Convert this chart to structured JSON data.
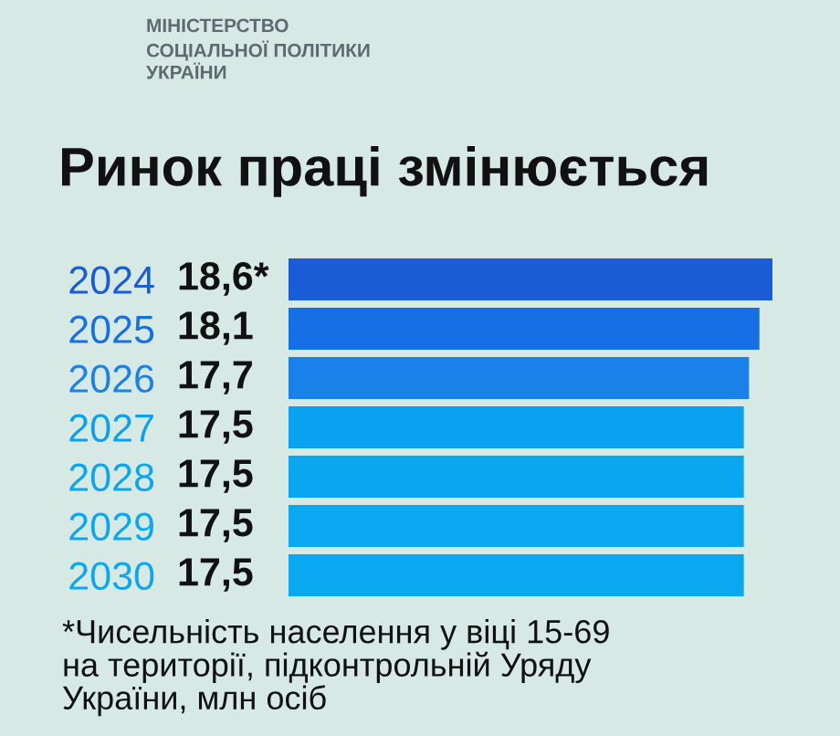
{
  "chart_data": {
    "type": "bar",
    "orientation": "horizontal",
    "title": "Ринок праці змінюється",
    "annotations": [
      "МІНІСТЕРСТВО\nСОЦІАЛЬНОЇ ПОЛІТИКИ\nУКРАЇНИ",
      "*Чисельність населення у віці 15-69\nна території, підконтрольній Уряду\nУкраїни, млн осіб"
    ],
    "categories": [
      "2024",
      "2025",
      "2026",
      "2027",
      "2028",
      "2029",
      "2030"
    ],
    "values": [
      18.6,
      18.1,
      17.7,
      17.5,
      17.5,
      17.5,
      17.5
    ],
    "value_labels": [
      "18,6*",
      "18,1",
      "17,7",
      "17,5",
      "17,5",
      "17,5",
      "17,5"
    ],
    "colors": [
      "#1a5bd6",
      "#1570e6",
      "#1a80ea",
      "#0aa2f0",
      "#0aa6f0",
      "#0aa8f0",
      "#0aa8f0"
    ],
    "xlim": [
      0,
      18.6
    ],
    "tick_labels": "y"
  }
}
